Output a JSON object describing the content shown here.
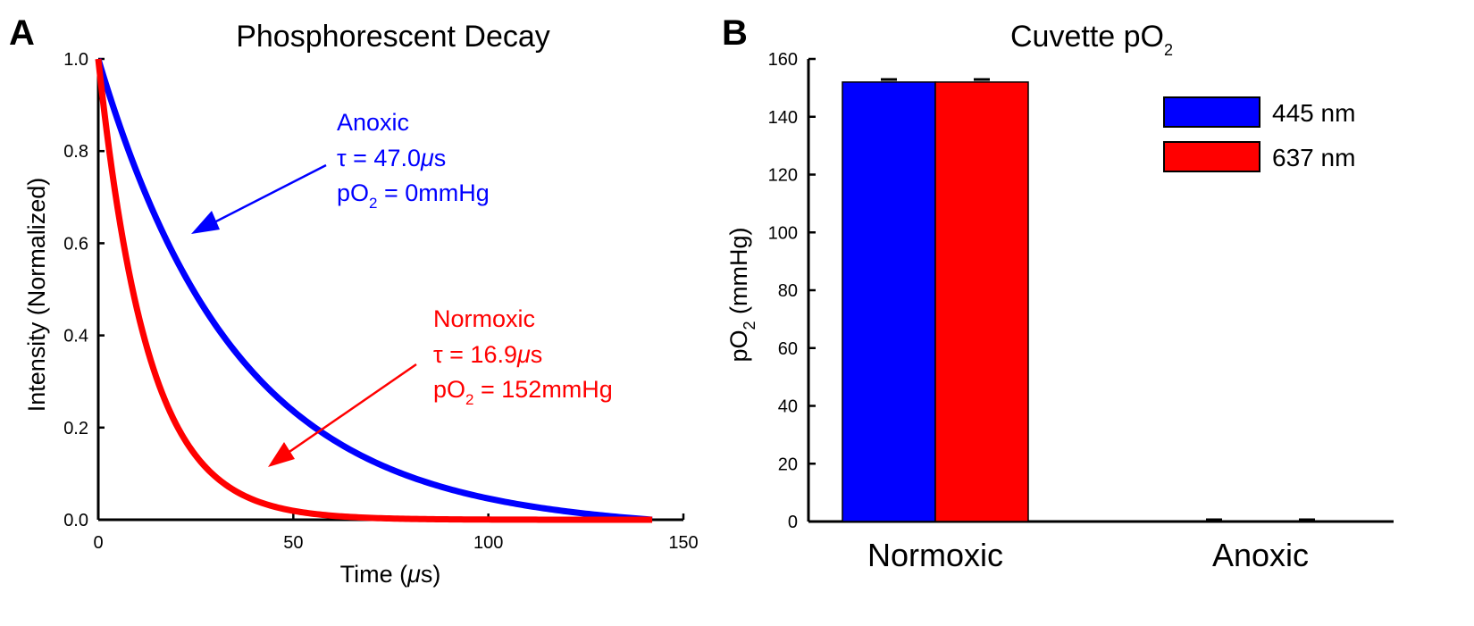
{
  "panels": {
    "a": {
      "letter": "A"
    },
    "b": {
      "letter": "B"
    }
  },
  "chart_data": [
    {
      "type": "line",
      "title": "Phosphorescent Decay",
      "xlabel_prefix": "Time (",
      "xlabel_unit_mu": "μ",
      "xlabel_suffix": "s)",
      "ylabel": "Intensity (Normalized)",
      "xlim": [
        0,
        150
      ],
      "ylim": [
        0,
        1.0
      ],
      "xticks": [
        "0",
        "50",
        "100",
        "150"
      ],
      "xtick_values": [
        0,
        50,
        100,
        150
      ],
      "yticks": [
        "0.0",
        "0.2",
        "0.4",
        "0.6",
        "0.8",
        "1.0"
      ],
      "ytick_values": [
        0,
        0.2,
        0.4,
        0.6,
        0.8,
        1.0
      ],
      "x_end": 142,
      "series": [
        {
          "name": "Anoxic",
          "tau_us": 47.0,
          "color": "#0000ff"
        },
        {
          "name": "Normoxic",
          "tau_us": 16.9,
          "color": "#ff0000"
        }
      ],
      "annotations": {
        "anoxic": {
          "label": "Anoxic",
          "tau_prefix": "τ = 47.0",
          "tau_mu": "μ",
          "tau_suffix": "s",
          "po2_p": "pO",
          "po2_sub": "2",
          "po2_rest": " = 0mmHg",
          "color": "#0000ff"
        },
        "normoxic": {
          "label": "Normoxic",
          "tau_prefix": "τ = 16.9",
          "tau_mu": "μ",
          "tau_suffix": "s",
          "po2_p": "pO",
          "po2_sub": "2",
          "po2_rest": " = 152mmHg",
          "color": "#ff0000"
        }
      }
    },
    {
      "type": "bar",
      "title_main": "Cuvette pO",
      "title_sub": "2",
      "ylabel_main": "pO",
      "ylabel_sub": "2",
      "ylabel_rest": " (mmHg)",
      "ylim": [
        0,
        160
      ],
      "yticks": [
        "0",
        "20",
        "40",
        "60",
        "80",
        "100",
        "120",
        "140",
        "160"
      ],
      "ytick_values": [
        0,
        20,
        40,
        60,
        80,
        100,
        120,
        140,
        160
      ],
      "categories": [
        "Normoxic",
        "Anoxic"
      ],
      "series": [
        {
          "name": "445 nm",
          "values": [
            152,
            0
          ],
          "errors": [
            0.6,
            0.3
          ],
          "color": "#0000ff"
        },
        {
          "name": "637 nm",
          "values": [
            152,
            0
          ],
          "errors": [
            0.6,
            0.3
          ],
          "color": "#ff0000"
        }
      ],
      "legend_position": "top-right"
    }
  ]
}
